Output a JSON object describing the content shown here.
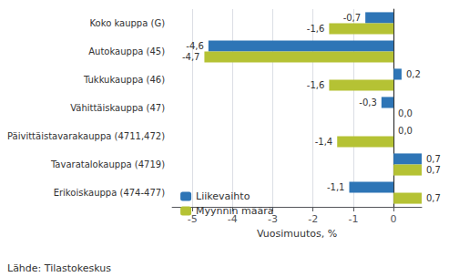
{
  "chart_data": {
    "type": "bar",
    "orientation": "horizontal",
    "categories": [
      "Erikoiskauppa (474-477)",
      "Tavaratalokauppa (4719)",
      "Päivittäistavarakauppa (4711,472)",
      "Vähittäiskauppa (47)",
      "Tukkukauppa (46)",
      "Autokauppa (45)",
      "Koko kauppa (G)"
    ],
    "series": [
      {
        "name": "Liikevaihto",
        "color": "#2e75b6",
        "values": [
          -1.1,
          0.7,
          0.0,
          -0.3,
          0.2,
          -4.6,
          -0.7
        ],
        "value_labels": [
          "-1,1",
          "0,7",
          "0,0",
          "-0,3",
          "0,2",
          "-4,6",
          "-0,7"
        ]
      },
      {
        "name": "Myynnin määrä",
        "color": "#b5c234",
        "values": [
          0.7,
          0.7,
          -1.4,
          0.0,
          -1.6,
          -4.7,
          -1.6
        ],
        "value_labels": [
          "0,7",
          "0,7",
          "-1,4",
          "0,0",
          "-1,6",
          "-4,7",
          "-1,6"
        ]
      }
    ],
    "xlabel": "Vuosimuutos, %",
    "xlim": [
      -5.5,
      0.7
    ],
    "xticks": [
      -5,
      -4,
      -3,
      -2,
      -1,
      0
    ],
    "grid": true,
    "legend": "lower left",
    "data_labels": true,
    "annotations": [
      "Lähde: Tilastokeskus"
    ]
  }
}
